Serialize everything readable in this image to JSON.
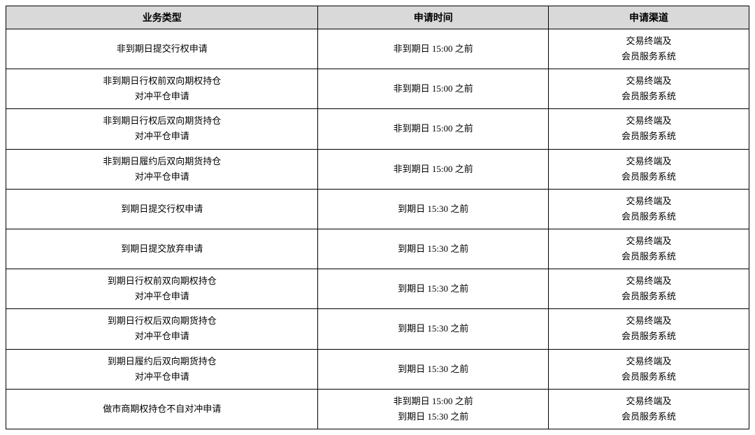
{
  "table": {
    "type": "table",
    "columns": [
      {
        "key": "businessType",
        "label": "业务类型",
        "width": "42%",
        "align": "center"
      },
      {
        "key": "applyTime",
        "label": "申请时间",
        "width": "31%",
        "align": "center"
      },
      {
        "key": "applyChannel",
        "label": "申请渠道",
        "width": "27%",
        "align": "center"
      }
    ],
    "header_background": "#d9d9d9",
    "border_color": "#000000",
    "font_size_header": 14,
    "font_size_cell": 13,
    "cell_line_height": 1.7,
    "rows": [
      {
        "businessType": [
          "非到期日提交行权申请"
        ],
        "applyTime": [
          "非到期日 15:00 之前"
        ],
        "applyChannel": [
          "交易终端及",
          "会员服务系统"
        ]
      },
      {
        "businessType": [
          "非到期日行权前双向期权持仓",
          "对冲平仓申请"
        ],
        "applyTime": [
          "非到期日 15:00 之前"
        ],
        "applyChannel": [
          "交易终端及",
          "会员服务系统"
        ]
      },
      {
        "businessType": [
          "非到期日行权后双向期货持仓",
          "对冲平仓申请"
        ],
        "applyTime": [
          "非到期日 15:00 之前"
        ],
        "applyChannel": [
          "交易终端及",
          "会员服务系统"
        ]
      },
      {
        "businessType": [
          "非到期日履约后双向期货持仓",
          "对冲平仓申请"
        ],
        "applyTime": [
          "非到期日 15:00 之前"
        ],
        "applyChannel": [
          "交易终端及",
          "会员服务系统"
        ]
      },
      {
        "businessType": [
          "到期日提交行权申请"
        ],
        "applyTime": [
          "到期日 15:30 之前"
        ],
        "applyChannel": [
          "交易终端及",
          "会员服务系统"
        ]
      },
      {
        "businessType": [
          "到期日提交放弃申请"
        ],
        "applyTime": [
          "到期日 15:30 之前"
        ],
        "applyChannel": [
          "交易终端及",
          "会员服务系统"
        ]
      },
      {
        "businessType": [
          "到期日行权前双向期权持仓",
          "对冲平仓申请"
        ],
        "applyTime": [
          "到期日 15:30 之前"
        ],
        "applyChannel": [
          "交易终端及",
          "会员服务系统"
        ]
      },
      {
        "businessType": [
          "到期日行权后双向期货持仓",
          "对冲平仓申请"
        ],
        "applyTime": [
          "到期日 15:30 之前"
        ],
        "applyChannel": [
          "交易终端及",
          "会员服务系统"
        ]
      },
      {
        "businessType": [
          "到期日履约后双向期货持仓",
          "对冲平仓申请"
        ],
        "applyTime": [
          "到期日 15:30 之前"
        ],
        "applyChannel": [
          "交易终端及",
          "会员服务系统"
        ]
      },
      {
        "businessType": [
          "做市商期权持仓不自对冲申请"
        ],
        "applyTime": [
          "非到期日 15:00 之前",
          "到期日 15:30 之前"
        ],
        "applyChannel": [
          "交易终端及",
          "会员服务系统"
        ]
      }
    ]
  }
}
